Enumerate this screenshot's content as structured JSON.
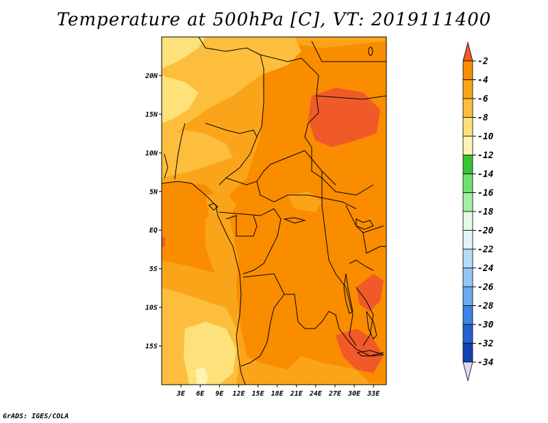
{
  "title": "Temperature at 500hPa [C], VT: 2019111400",
  "credit": "GrADS: IGES/COLA",
  "map": {
    "variable": "Temperature at 500hPa",
    "units": "C",
    "valid_time": "2019111400",
    "lon_range": [
      0,
      35
    ],
    "lat_range": [
      -20,
      25
    ],
    "lon_ticks": [
      "3E",
      "6E",
      "9E",
      "12E",
      "15E",
      "18E",
      "21E",
      "24E",
      "27E",
      "30E",
      "33E"
    ],
    "lat_ticks": [
      "20N",
      "15N",
      "10N",
      "5N",
      "EQ",
      "5S",
      "10S",
      "15S"
    ]
  },
  "colorbar": {
    "labels": [
      "-2",
      "-4",
      "-6",
      "-8",
      "-10",
      "-12",
      "-14",
      "-16",
      "-18",
      "-20",
      "-22",
      "-24",
      "-26",
      "-28",
      "-30",
      "-32",
      "-34"
    ],
    "colors": [
      "#f05a28",
      "#fa8c00",
      "#faa519",
      "#fcbe3c",
      "#fde17a",
      "#fdf4b4",
      "#37c437",
      "#6fe06f",
      "#a3f0a3",
      "#e2fbe2",
      "#e4f4fd",
      "#b7dcf8",
      "#92c6f4",
      "#6aaaee",
      "#3c85e3",
      "#2462d0",
      "#1342b4",
      "#0c1d78",
      "#dcdcf5"
    ]
  }
}
